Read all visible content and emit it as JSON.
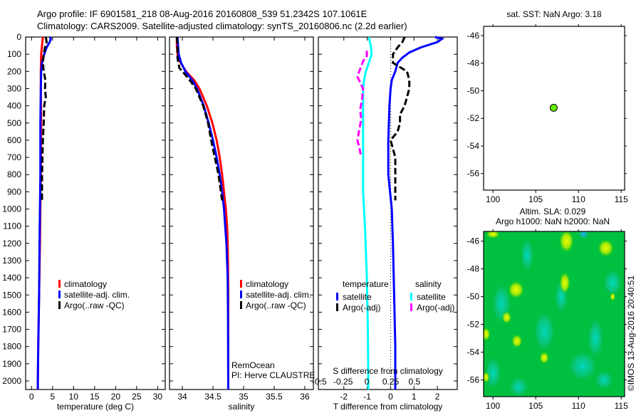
{
  "title": {
    "line1": "Argo profile: IF 6901581_218 08-Aug-2016 20160808_539 51.2342S 107.1061E",
    "line2": "Climatology: CARS2009. Satellite-adjusted climatology: synTS_20160806.nc (2.2d earlier)"
  },
  "credit": "©IMOS 13-Aug-2016 20:40:51",
  "chart_data": [
    {
      "id": "temperature",
      "type": "line",
      "xlabel": "temperature (deg C)",
      "xlim": [
        -1.4,
        31.8
      ],
      "ylim": [
        0,
        2050
      ],
      "yreversed": true,
      "xticks": [
        0,
        5,
        10,
        15,
        20,
        25,
        30
      ],
      "yticks": [
        0,
        100,
        200,
        300,
        400,
        500,
        600,
        700,
        800,
        900,
        1000,
        1100,
        1200,
        1300,
        1400,
        1500,
        1600,
        1700,
        1800,
        1900,
        2000
      ],
      "legend": [
        "climatology",
        "satellite-adj. clim.",
        "Argo(..raw -QC)"
      ],
      "series": [
        {
          "name": "climatology",
          "color": "#ff0000",
          "style": "solid",
          "depth": [
            0,
            50,
            100,
            200,
            300,
            500,
            800,
            1000,
            1200,
            1500,
            1800,
            2000,
            2050
          ],
          "values": [
            2.7,
            2.5,
            2.3,
            2.2,
            2.2,
            2.3,
            2.2,
            2.1,
            2.0,
            1.8,
            1.6,
            1.5,
            1.5
          ]
        },
        {
          "name": "satellite-adj. clim.",
          "color": "#0000ff",
          "style": "solid",
          "depth": [
            0,
            10,
            30,
            60,
            100,
            150,
            200,
            300,
            500,
            800,
            1000,
            1200,
            1500,
            1800,
            2000,
            2050
          ],
          "values": [
            4.3,
            4.6,
            4.3,
            3.6,
            3.0,
            2.5,
            2.3,
            2.2,
            2.1,
            2.1,
            2.0,
            1.9,
            1.8,
            1.6,
            1.5,
            1.5
          ]
        },
        {
          "name": "Argo(..raw -QC)",
          "color": "#000000",
          "style": "dashed",
          "depth": [
            0,
            30,
            60,
            100,
            150,
            200,
            250,
            300,
            350,
            400,
            500,
            600,
            700,
            800,
            950
          ],
          "values": [
            3.4,
            3.6,
            3.2,
            2.9,
            2.7,
            2.9,
            3.3,
            3.2,
            3.4,
            3.0,
            2.9,
            2.7,
            2.6,
            2.5,
            2.5
          ]
        }
      ]
    },
    {
      "id": "salinity",
      "type": "line",
      "xlabel": "salinity",
      "xlim": [
        33.79,
        36.14
      ],
      "ylim": [
        0,
        2050
      ],
      "yreversed": true,
      "xticks": [
        34,
        34.5,
        35,
        35.5,
        36
      ],
      "legend": [
        "climatology",
        "satellite-adj. clim.",
        "Argo(..raw -QC)"
      ],
      "annotations": [
        "RemOcean",
        "PI: Herve CLAUSTRE"
      ],
      "series": [
        {
          "name": "climatology",
          "color": "#ff0000",
          "style": "solid",
          "depth": [
            0,
            50,
            100,
            150,
            200,
            250,
            300,
            400,
            500,
            600,
            700,
            800,
            900,
            1000,
            1100,
            1200,
            1300,
            1500,
            2050
          ],
          "values": [
            33.91,
            33.91,
            33.92,
            33.97,
            34.06,
            34.19,
            34.28,
            34.4,
            34.49,
            34.56,
            34.61,
            34.65,
            34.68,
            34.71,
            34.73,
            34.74,
            34.745,
            34.75,
            34.75
          ]
        },
        {
          "name": "satellite-adj. clim.",
          "color": "#0000ff",
          "style": "solid",
          "depth": [
            0,
            50,
            100,
            150,
            200,
            250,
            300,
            400,
            500,
            600,
            700,
            800,
            900,
            1000,
            1100,
            1200,
            1400,
            1600,
            2050
          ],
          "values": [
            33.92,
            33.93,
            33.94,
            33.98,
            34.05,
            34.16,
            34.24,
            34.35,
            34.43,
            34.5,
            34.56,
            34.61,
            34.65,
            34.68,
            34.7,
            34.72,
            34.74,
            34.745,
            34.75
          ]
        },
        {
          "name": "Argo(..raw -QC)",
          "color": "#000000",
          "style": "dashed",
          "depth": [
            0,
            60,
            120,
            180,
            220,
            260,
            300,
            400,
            500,
            600,
            650,
            700,
            800,
            900,
            950
          ],
          "values": [
            33.91,
            33.92,
            33.92,
            33.95,
            34.05,
            34.14,
            34.22,
            34.34,
            34.42,
            34.47,
            34.5,
            34.53,
            34.59,
            34.63,
            34.65
          ]
        }
      ]
    },
    {
      "id": "difference",
      "type": "line",
      "xlabel": "T difference from climatology",
      "x2label": "S difference from climatology",
      "xlim": [
        -3.09,
        2.85
      ],
      "x2lim": [
        -0.51,
        0.95
      ],
      "ylim": [
        0,
        2050
      ],
      "yreversed": true,
      "xticks": [
        -2,
        -1,
        0,
        1,
        2
      ],
      "x2ticks": [
        -0.5,
        -0.25,
        0,
        0.25,
        0.5
      ],
      "x2ticklabels": [
        "-0.5",
        "-0.25",
        "0",
        "0.25",
        "0.5"
      ],
      "legend_groups": [
        {
          "title": "temperature",
          "items": [
            "satellite",
            "Argo(-adj)"
          ]
        },
        {
          "title": "salinity",
          "items": [
            "satellite",
            "Argo(-adj)"
          ]
        }
      ],
      "series": [
        {
          "name": "temperature satellite",
          "axis": "T",
          "color": "#0000ff",
          "style": "solid",
          "depth": [
            0,
            10,
            30,
            60,
            90,
            120,
            150,
            200,
            250,
            300,
            400,
            600,
            800,
            1000,
            1200,
            1500,
            1800,
            2000,
            2050
          ],
          "values": [
            1.9,
            2.2,
            2.0,
            1.3,
            0.8,
            0.5,
            0.3,
            0.2,
            0.05,
            0.0,
            -0.05,
            -0.1,
            -0.1,
            0.05,
            0.1,
            0.15,
            0.2,
            0.2,
            0.2
          ]
        },
        {
          "name": "temperature Argo(-adj)",
          "axis": "T",
          "color": "#000000",
          "style": "dashed",
          "depth": [
            0,
            30,
            60,
            100,
            150,
            200,
            250,
            300,
            350,
            400,
            450,
            500,
            550,
            600,
            700,
            800,
            900,
            950
          ],
          "values": [
            0.6,
            0.5,
            0.3,
            0.1,
            0.1,
            0.7,
            0.8,
            0.8,
            0.7,
            0.6,
            0.4,
            0.4,
            0.3,
            0.0,
            0.2,
            0.2,
            0.2,
            0.2
          ]
        },
        {
          "name": "salinity satellite",
          "axis": "S",
          "color": "#00ffff",
          "style": "solid",
          "depth": [
            0,
            50,
            100,
            150,
            200,
            250,
            300,
            400,
            500,
            700,
            900,
            1100,
            1400,
            1700,
            2000,
            2050
          ],
          "values": [
            0.02,
            0.04,
            0.05,
            0.02,
            -0.01,
            -0.03,
            -0.04,
            -0.04,
            -0.04,
            -0.04,
            -0.04,
            -0.02,
            0.0,
            0.01,
            0.015,
            0.015
          ]
        },
        {
          "name": "salinity Argo(-adj)",
          "axis": "S",
          "color": "#ff00ff",
          "style": "dashed",
          "depth": [
            80,
            110,
            140,
            170,
            200,
            230,
            300,
            360,
            420,
            480,
            540,
            600,
            640,
            700
          ],
          "values": [
            0.0,
            0.0,
            -0.04,
            -0.06,
            -0.08,
            -0.1,
            -0.04,
            -0.05,
            -0.07,
            -0.06,
            -0.08,
            -0.1,
            -0.08,
            -0.06
          ]
        }
      ]
    },
    {
      "id": "sst-map",
      "type": "scatter",
      "title": "sat. SST: NaN Argo: 3.18",
      "xlim": [
        98.9,
        115.4
      ],
      "ylim": [
        -57.2,
        -45.33
      ],
      "xticks": [
        100,
        105,
        110,
        115
      ],
      "yticks": [
        -46,
        -48,
        -50,
        -52,
        -54,
        -56
      ],
      "points": [
        {
          "lon": 107.1,
          "lat": -51.23,
          "color": "#66ee00"
        }
      ]
    },
    {
      "id": "sla-map",
      "type": "heatmap",
      "title_line1": "Altim. SLA: 0.029",
      "title_line2": "Argo h1000: NaN h2000: NaN",
      "xlim": [
        98.9,
        115.4
      ],
      "ylim": [
        -57.2,
        -45.3
      ],
      "xticks": [
        100,
        105,
        110,
        115
      ],
      "yticks": [
        -46,
        -48,
        -50,
        -52,
        -54,
        -56
      ]
    }
  ]
}
